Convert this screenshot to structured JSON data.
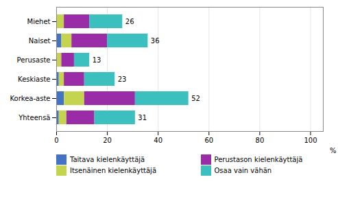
{
  "chart_data": {
    "type": "bar",
    "orientation": "horizontal",
    "stacked": true,
    "categories": [
      "Miehet",
      "Naiset",
      "Perusaste",
      "Keskiaste",
      "Korkea-aste",
      "Yhteensä"
    ],
    "series": [
      {
        "name": "Taitava kielenkäyttäjä",
        "color": "#4472C4",
        "values": [
          0,
          2,
          0,
          1,
          3,
          1
        ]
      },
      {
        "name": "Itsenäinen kielenkäyttäjä",
        "color": "#C5D44E",
        "values": [
          3,
          4,
          2,
          2,
          8,
          3
        ]
      },
      {
        "name": "Perustason kielenkäyttäjä",
        "color": "#9B2CA8",
        "values": [
          10,
          14,
          5,
          8,
          20,
          11
        ]
      },
      {
        "name": "Osaa vain vähän",
        "color": "#3BBFBF",
        "values": [
          13,
          16,
          6,
          12,
          21,
          16
        ]
      }
    ],
    "annotations": [
      26,
      36,
      13,
      23,
      52,
      31
    ],
    "xlabel": "%",
    "xlim": [
      0,
      105
    ],
    "xticks": [
      0,
      20,
      40,
      60,
      80,
      100
    ],
    "grid": true,
    "legend": "bottom"
  }
}
